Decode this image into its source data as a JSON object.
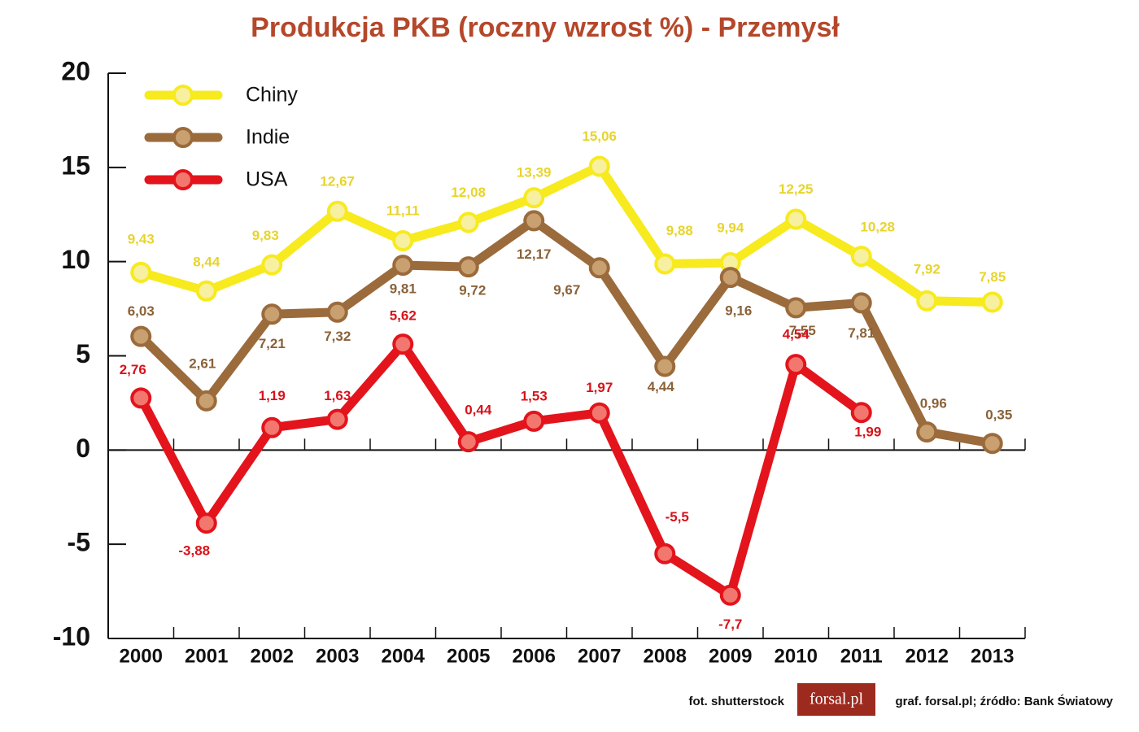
{
  "chart_data": {
    "type": "line",
    "title": "Produkcja PKB (roczny wzrost %) - Przemysł",
    "categories": [
      "2000",
      "2001",
      "2002",
      "2003",
      "2004",
      "2005",
      "2006",
      "2007",
      "2008",
      "2009",
      "2010",
      "2011",
      "2012",
      "2013"
    ],
    "series": [
      {
        "name": "Chiny",
        "color": "#f7ea1e",
        "label_color": "#e8d42a",
        "marker_fill": "#f7f0a0",
        "values": [
          9.43,
          8.44,
          9.83,
          12.67,
          11.11,
          12.08,
          13.39,
          15.06,
          9.88,
          9.94,
          12.25,
          10.28,
          7.92,
          7.85
        ],
        "value_labels": [
          "9,43",
          "8,44",
          "9,83",
          "12,67",
          "11,11",
          "12,08",
          "13,39",
          "15,06",
          "9,88",
          "9,94",
          "12,25",
          "10,28",
          "7,92",
          "7,85"
        ]
      },
      {
        "name": "Indie",
        "color": "#9b6b3c",
        "label_color": "#8a6238",
        "marker_fill": "#c9a070",
        "values": [
          6.03,
          2.61,
          7.21,
          7.32,
          9.81,
          9.72,
          12.17,
          9.67,
          4.44,
          9.16,
          7.55,
          7.81,
          0.96,
          0.35
        ],
        "value_labels": [
          "6,03",
          "2,61",
          "7,21",
          "7,32",
          "9,81",
          "9,72",
          "12,17",
          "9,67",
          "4,44",
          "9,16",
          "7,55",
          "7,81",
          "0,96",
          "0,35"
        ]
      },
      {
        "name": "USA",
        "color": "#e3141c",
        "label_color": "#d8121a",
        "marker_fill": "#f2776f",
        "values": [
          2.76,
          -3.88,
          1.19,
          1.63,
          5.62,
          0.44,
          1.53,
          1.97,
          -5.5,
          -7.7,
          4.54,
          1.99,
          null,
          null
        ],
        "value_labels": [
          "2,76",
          "-3,88",
          "1,19",
          "1,63",
          "5,62",
          "0,44",
          "1,53",
          "1,97",
          "-5,5",
          "-7,7",
          "4,54",
          "1,99",
          null,
          null
        ]
      }
    ],
    "ylim": [
      -10,
      20
    ],
    "yticks": [
      -10,
      -5,
      0,
      5,
      10,
      15,
      20
    ],
    "legend": "upper left",
    "photo_credit": "fot. shutterstock",
    "logo": "forsal.pl",
    "source": "graf. forsal.pl;  źródło: Bank Światowy"
  }
}
